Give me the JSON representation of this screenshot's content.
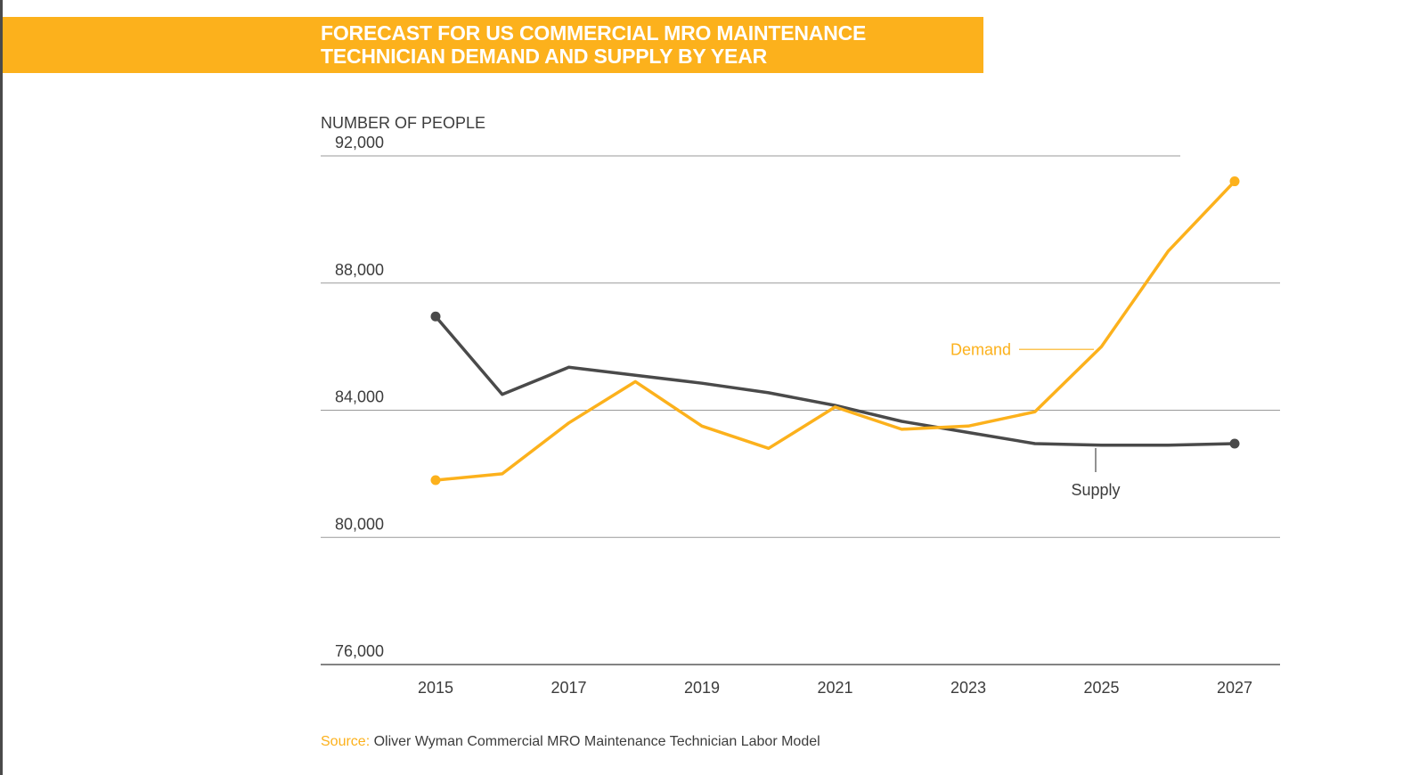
{
  "colors": {
    "accent": "#fcb11c",
    "demand": "#fcb11c",
    "supply": "#4a4a4a",
    "grid": "#9a9a9a",
    "text": "#3c3c3c"
  },
  "header": {
    "title_line1": "FORECAST FOR US COMMERCIAL MRO MAINTENANCE",
    "title_line2": "TECHNICIAN DEMAND AND SUPPLY BY YEAR"
  },
  "footer": {
    "source_label": "Source:",
    "source_text": "Oliver Wyman Commercial MRO Maintenance Technician Labor Model"
  },
  "chart_data": {
    "type": "line",
    "ylabel": "NUMBER OF PEOPLE",
    "ylim": [
      76000,
      92000
    ],
    "yticks": [
      92000,
      88000,
      84000,
      80000,
      76000
    ],
    "ytick_labels": [
      "92,000",
      "88,000",
      "84,000",
      "80,000",
      "76,000"
    ],
    "x": [
      2015,
      2016,
      2017,
      2018,
      2019,
      2020,
      2021,
      2022,
      2023,
      2024,
      2025,
      2026,
      2027
    ],
    "xticks": [
      "2015",
      "2017",
      "2019",
      "2021",
      "2023",
      "2025",
      "2027"
    ],
    "grid": "horizontal",
    "series": [
      {
        "name": "Demand",
        "color": "#fcb11c",
        "values": [
          81800,
          82000,
          83600,
          84900,
          83500,
          82800,
          84100,
          83400,
          83500,
          83950,
          86000,
          89000,
          91200
        ]
      },
      {
        "name": "Supply",
        "color": "#4a4a4a",
        "values": [
          86950,
          84500,
          85350,
          85100,
          84850,
          84550,
          84150,
          83650,
          83300,
          82950,
          82900,
          82900,
          82950
        ]
      }
    ]
  }
}
